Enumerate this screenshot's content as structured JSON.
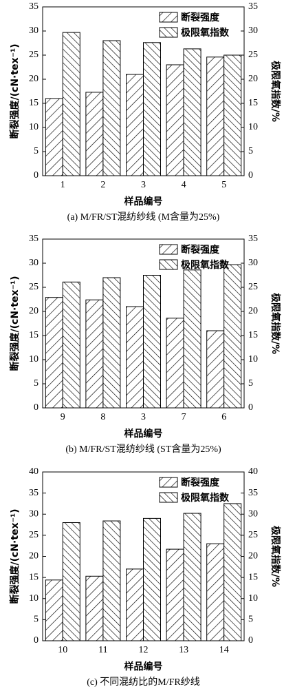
{
  "chart_data": [
    {
      "type": "bar",
      "caption": "(a) M/FR/ST混纺纱线 (M含量为25%)",
      "xlabel": "样品编号",
      "ylabel": "断裂强度/(cN·tex⁻¹)",
      "y2label": "极限氧指数/%",
      "categories": [
        "1",
        "2",
        "3",
        "4",
        "5"
      ],
      "series": [
        {
          "name": "断裂强度",
          "color": "#000000",
          "hatch": "/",
          "values": [
            16,
            17.3,
            21,
            23,
            24.6
          ]
        },
        {
          "name": "极限氧指数",
          "color": "#000000",
          "hatch": "\\",
          "axis": "y2",
          "values": [
            29.7,
            28,
            27.6,
            26.3,
            25
          ]
        }
      ],
      "ylim": [
        0,
        35
      ],
      "yticks": [
        0,
        5,
        10,
        15,
        20,
        25,
        30,
        35
      ],
      "y2lim": [
        0,
        35
      ],
      "y2ticks": [
        0,
        5,
        10,
        15,
        20,
        25,
        30,
        35
      ],
      "legend": "upper center"
    },
    {
      "type": "bar",
      "caption": "(b) M/FR/ST混纺纱线 (ST含量为25%)",
      "xlabel": "样品编号",
      "ylabel": "断裂强度/(cN·tex⁻¹)",
      "y2label": "极限氧指数/%",
      "categories": [
        "9",
        "8",
        "3",
        "7",
        "6"
      ],
      "series": [
        {
          "name": "断裂强度",
          "color": "#000000",
          "hatch": "/",
          "values": [
            22.9,
            22.4,
            21,
            18.6,
            16
          ]
        },
        {
          "name": "极限氧指数",
          "color": "#000000",
          "hatch": "\\",
          "axis": "y2",
          "values": [
            26.1,
            27,
            27.5,
            28.6,
            29.7
          ]
        }
      ],
      "ylim": [
        0,
        35
      ],
      "yticks": [
        0,
        5,
        10,
        15,
        20,
        25,
        30,
        35
      ],
      "y2lim": [
        0,
        35
      ],
      "y2ticks": [
        0,
        5,
        10,
        15,
        20,
        25,
        30,
        35
      ],
      "legend": "upper center"
    },
    {
      "type": "bar",
      "caption": "(c) 不同混纺比的M/FR纱线",
      "xlabel": "样品编号",
      "ylabel": "断裂强度/(cN·tex⁻¹)",
      "y2label": "极限氧指数/%",
      "categories": [
        "10",
        "11",
        "12",
        "13",
        "14"
      ],
      "series": [
        {
          "name": "断裂强度",
          "color": "#000000",
          "hatch": "/",
          "values": [
            14.4,
            15.3,
            17,
            21.7,
            23
          ]
        },
        {
          "name": "极限氧指数",
          "color": "#000000",
          "hatch": "\\",
          "axis": "y2",
          "values": [
            28,
            28.4,
            29,
            30.2,
            32.5
          ]
        }
      ],
      "ylim": [
        0,
        40
      ],
      "yticks": [
        0,
        5,
        10,
        15,
        20,
        25,
        30,
        35,
        40
      ],
      "y2lim": [
        0,
        40
      ],
      "y2ticks": [
        0,
        5,
        10,
        15,
        20,
        25,
        30,
        35,
        40
      ],
      "legend": "upper center"
    }
  ]
}
